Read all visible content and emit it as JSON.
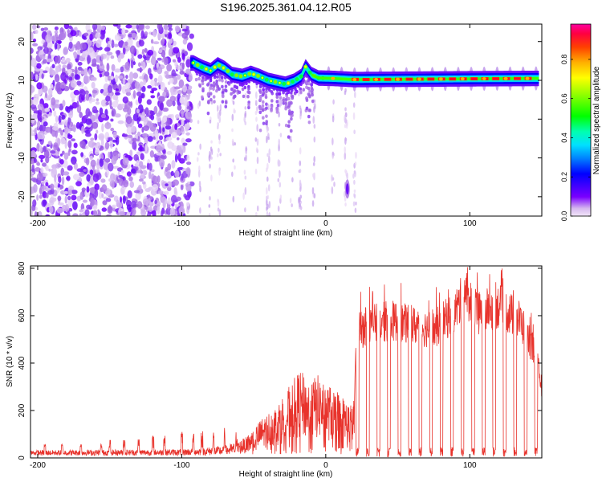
{
  "title": "S196.2025.361.04.12.R05",
  "chart_data": [
    {
      "type": "heatmap",
      "title": "S196.2025.361.04.12.R05",
      "xlabel": "Height of straight line (km)",
      "ylabel": "Frequency (Hz)",
      "xlim": [
        -205,
        150
      ],
      "ylim": [
        -25,
        24.5
      ],
      "xticks": [
        -200,
        -100,
        0,
        100
      ],
      "yticks": [
        -20,
        -10,
        0,
        10,
        20
      ],
      "colorbar": {
        "label": "Normalized spectral amplitude",
        "range": [
          0,
          0.98
        ],
        "ticks": [
          0.0,
          0.2,
          0.4,
          0.6,
          0.8
        ],
        "tick_labels": [
          "0.0",
          "0.2",
          "0.4",
          "0.6",
          "0.8"
        ]
      },
      "ridge": {
        "description": "dominant spectral line",
        "points": [
          {
            "x": -92,
            "y": 14.5
          },
          {
            "x": -85,
            "y": 13.2
          },
          {
            "x": -80,
            "y": 12.5
          },
          {
            "x": -75,
            "y": 14.0
          },
          {
            "x": -70,
            "y": 13.0
          },
          {
            "x": -65,
            "y": 11.5
          },
          {
            "x": -58,
            "y": 11.0
          },
          {
            "x": -52,
            "y": 11.8
          },
          {
            "x": -46,
            "y": 11.0
          },
          {
            "x": -40,
            "y": 10.0
          },
          {
            "x": -34,
            "y": 9.5
          },
          {
            "x": -28,
            "y": 9.0
          },
          {
            "x": -22,
            "y": 9.8
          },
          {
            "x": -17,
            "y": 11.0
          },
          {
            "x": -14,
            "y": 13.5
          },
          {
            "x": -10,
            "y": 11.5
          },
          {
            "x": -5,
            "y": 10.6
          },
          {
            "x": 5,
            "y": 10.5
          },
          {
            "x": 20,
            "y": 10.2
          },
          {
            "x": 60,
            "y": 10.3
          },
          {
            "x": 100,
            "y": 10.4
          },
          {
            "x": 148,
            "y": 10.5
          }
        ]
      }
    },
    {
      "type": "line",
      "xlabel": "Height of straight line (km)",
      "ylabel": "SNR (10 * v/v)",
      "xlim": [
        -205,
        150
      ],
      "ylim": [
        0,
        810
      ],
      "xticks": [
        -200,
        -100,
        0,
        100
      ],
      "yticks": [
        0,
        200,
        400,
        600,
        800
      ],
      "color": "#e8332c",
      "envelope": [
        {
          "x": -205,
          "y": 25
        },
        {
          "x": -100,
          "y": 30
        },
        {
          "x": -70,
          "y": 45
        },
        {
          "x": -55,
          "y": 80
        },
        {
          "x": -45,
          "y": 150
        },
        {
          "x": -35,
          "y": 200
        },
        {
          "x": -25,
          "y": 280
        },
        {
          "x": -18,
          "y": 340
        },
        {
          "x": -12,
          "y": 300
        },
        {
          "x": -5,
          "y": 320
        },
        {
          "x": 0,
          "y": 290
        },
        {
          "x": 8,
          "y": 260
        },
        {
          "x": 15,
          "y": 220
        },
        {
          "x": 19,
          "y": 200
        },
        {
          "x": 22,
          "y": 530
        },
        {
          "x": 30,
          "y": 560
        },
        {
          "x": 45,
          "y": 580
        },
        {
          "x": 60,
          "y": 560
        },
        {
          "x": 75,
          "y": 540
        },
        {
          "x": 90,
          "y": 620
        },
        {
          "x": 97,
          "y": 700
        },
        {
          "x": 105,
          "y": 610
        },
        {
          "x": 120,
          "y": 640
        },
        {
          "x": 135,
          "y": 580
        },
        {
          "x": 145,
          "y": 450
        },
        {
          "x": 150,
          "y": 300
        }
      ]
    }
  ]
}
